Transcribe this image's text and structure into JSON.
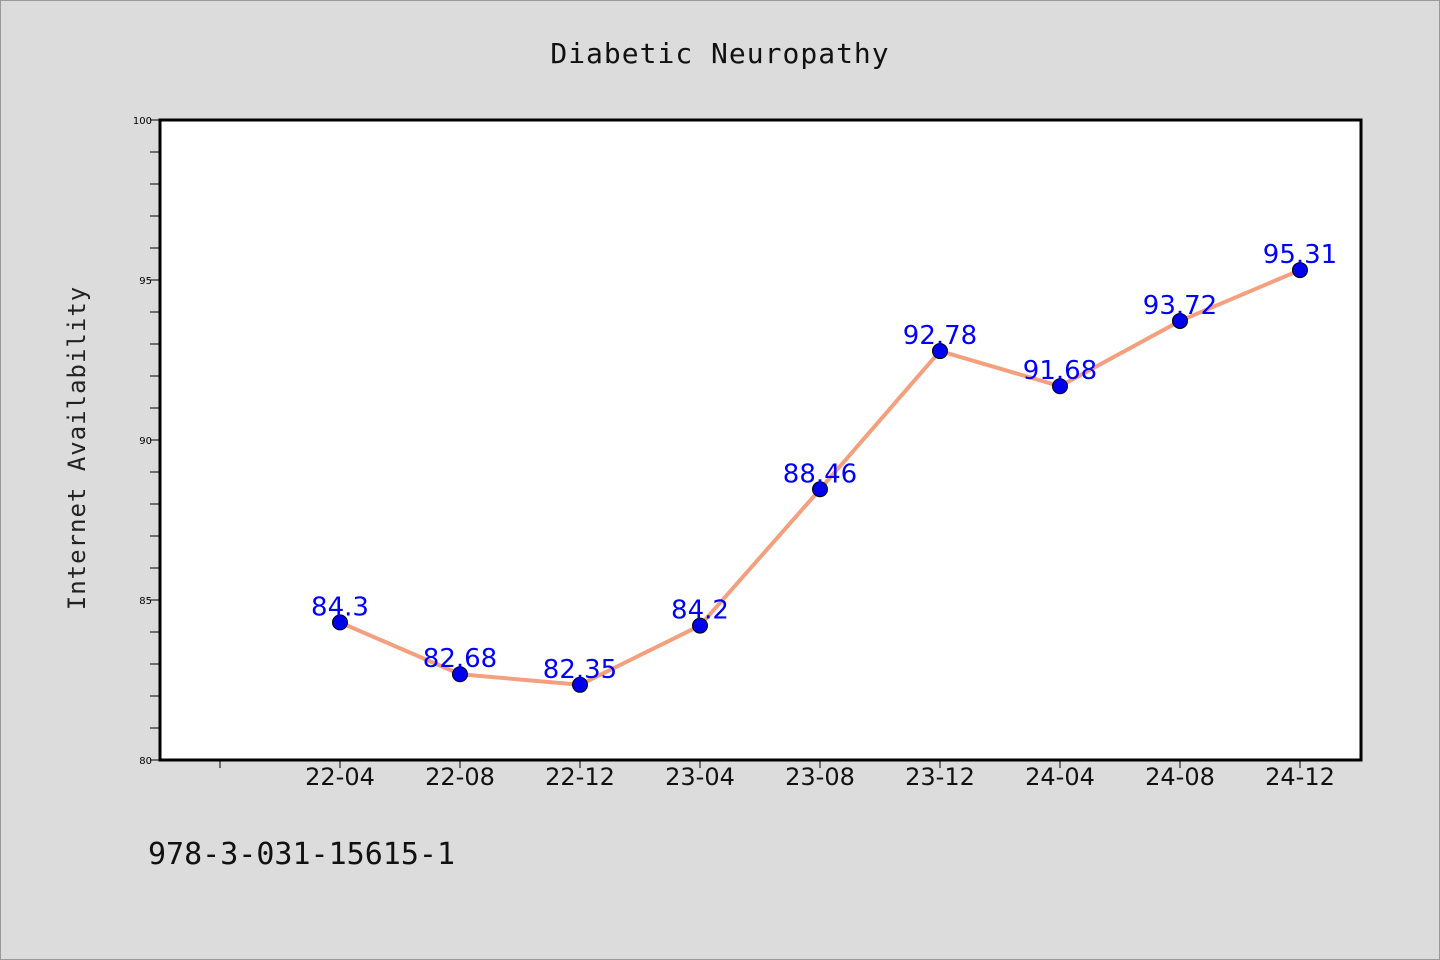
{
  "chart_data": {
    "type": "line",
    "title": "Diabetic Neuropathy",
    "xlabel": "",
    "ylabel": "Internet Availability",
    "categories": [
      "22-04",
      "22-08",
      "22-12",
      "23-04",
      "23-08",
      "23-12",
      "24-04",
      "24-08",
      "24-12"
    ],
    "series": [
      {
        "values": [
          84.3,
          82.68,
          82.35,
          84.2,
          88.46,
          92.78,
          91.68,
          93.72,
          95.31
        ],
        "data_labels": [
          "84.3",
          "82.68",
          "82.35",
          "84.2",
          "88.46",
          "92.78",
          "91.68",
          "93.72",
          "95.31"
        ],
        "line_color": "#f4a07e",
        "marker_color": "#0000ee"
      }
    ],
    "ylim": [
      80,
      100
    ],
    "yticks": [
      80,
      85,
      90,
      95,
      100
    ],
    "grid": false,
    "legend": "none",
    "label_color": "#0000ff"
  },
  "footer_text": "978-3-031-15615-1"
}
